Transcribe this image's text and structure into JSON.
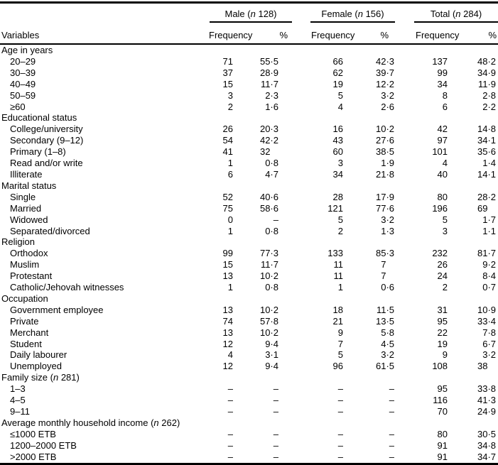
{
  "colors": {
    "text": "#000000",
    "background": "#ffffff",
    "rule": "#000000"
  },
  "table": {
    "variables_header": "Variables",
    "sub_headers": {
      "frequency": "Frequency",
      "percent": "%"
    },
    "col_groups": [
      {
        "name": "Male",
        "n_open": "(",
        "n_var": "n",
        "n_tail": " 128)"
      },
      {
        "name": "Female",
        "n_open": "(",
        "n_var": "n",
        "n_tail": " 156)"
      },
      {
        "name": "Total",
        "n_open": "(",
        "n_var": "n",
        "n_tail": " 284)"
      }
    ],
    "sections": [
      {
        "label": "Age in years",
        "rows": [
          {
            "label": "20–29",
            "cells": [
              "71",
              "55·5",
              "66",
              "42·3",
              "137",
              "48·2"
            ]
          },
          {
            "label": "30–39",
            "cells": [
              "37",
              "28·9",
              "62",
              "39·7",
              "99",
              "34·9"
            ]
          },
          {
            "label": "40–49",
            "cells": [
              "15",
              "11·7",
              "19",
              "12·2",
              "34",
              "11·9"
            ]
          },
          {
            "label": "50–59",
            "cells": [
              "3",
              "2·3",
              "5",
              "3·2",
              "8",
              "2·8"
            ]
          },
          {
            "label": "≥60",
            "cells": [
              "2",
              "1·6",
              "4",
              "2·6",
              "6",
              "2·2"
            ]
          }
        ]
      },
      {
        "label": "Educational status",
        "rows": [
          {
            "label": "College/university",
            "cells": [
              "26",
              "20·3",
              "16",
              "10·2",
              "42",
              "14·8"
            ]
          },
          {
            "label": "Secondary (9–12)",
            "cells": [
              "54",
              "42·2",
              "43",
              "27·6",
              "97",
              "34·1"
            ]
          },
          {
            "label": "Primary (1–8)",
            "cells": [
              "41",
              "32",
              "60",
              "38·5",
              "101",
              "35·6"
            ]
          },
          {
            "label": "Read and/or write",
            "cells": [
              "1",
              "0·8",
              "3",
              "1·9",
              "4",
              "1·4"
            ]
          },
          {
            "label": "Illiterate",
            "cells": [
              "6",
              "4·7",
              "34",
              "21·8",
              "40",
              "14·1"
            ]
          }
        ]
      },
      {
        "label": "Marital status",
        "rows": [
          {
            "label": "Single",
            "cells": [
              "52",
              "40·6",
              "28",
              "17·9",
              "80",
              "28·2"
            ]
          },
          {
            "label": "Married",
            "cells": [
              "75",
              "58·6",
              "121",
              "77·6",
              "196",
              "69"
            ]
          },
          {
            "label": "Widowed",
            "cells": [
              "0",
              "–",
              "5",
              "3·2",
              "5",
              "1·7"
            ]
          },
          {
            "label": "Separated/divorced",
            "cells": [
              "1",
              "0·8",
              "2",
              "1·3",
              "3",
              "1·1"
            ]
          }
        ]
      },
      {
        "label": "Religion",
        "rows": [
          {
            "label": "Orthodox",
            "cells": [
              "99",
              "77·3",
              "133",
              "85·3",
              "232",
              "81·7"
            ]
          },
          {
            "label": "Muslim",
            "cells": [
              "15",
              "11·7",
              "11",
              "7",
              "26",
              "9·2"
            ]
          },
          {
            "label": "Protestant",
            "cells": [
              "13",
              "10·2",
              "11",
              "7",
              "24",
              "8·4"
            ]
          },
          {
            "label": "Catholic/Jehovah witnesses",
            "cells": [
              "1",
              "0·8",
              "1",
              "0·6",
              "2",
              "0·7"
            ]
          }
        ]
      },
      {
        "label": "Occupation",
        "rows": [
          {
            "label": "Government employee",
            "cells": [
              "13",
              "10·2",
              "18",
              "11·5",
              "31",
              "10·9"
            ]
          },
          {
            "label": "Private",
            "cells": [
              "74",
              "57·8",
              "21",
              "13·5",
              "95",
              "33·4"
            ]
          },
          {
            "label": "Merchant",
            "cells": [
              "13",
              "10·2",
              "9",
              "5·8",
              "22",
              "7·8"
            ]
          },
          {
            "label": "Student",
            "cells": [
              "12",
              "9·4",
              "7",
              "4·5",
              "19",
              "6·7"
            ]
          },
          {
            "label": "Daily labourer",
            "cells": [
              "4",
              "3·1",
              "5",
              "3·2",
              "9",
              "3·2"
            ]
          },
          {
            "label": "Unemployed",
            "cells": [
              "12",
              "9·4",
              "96",
              "61·5",
              "108",
              "38"
            ]
          }
        ]
      },
      {
        "label": "Family size",
        "n_open": "(",
        "n_var": "n",
        "n_tail": " 281)",
        "rows": [
          {
            "label": "1–3",
            "cells": [
              "–",
              "–",
              "–",
              "–",
              "95",
              "33·8"
            ]
          },
          {
            "label": "4–5",
            "cells": [
              "–",
              "–",
              "–",
              "–",
              "116",
              "41·3"
            ]
          },
          {
            "label": "9–11",
            "cells": [
              "–",
              "–",
              "–",
              "–",
              "70",
              "24·9"
            ]
          }
        ]
      },
      {
        "label": "Average monthly household income",
        "n_open": "(",
        "n_var": "n",
        "n_tail": " 262)",
        "rows": [
          {
            "label": "≤1000 ETB",
            "cells": [
              "–",
              "–",
              "–",
              "–",
              "80",
              "30·5"
            ]
          },
          {
            "label": "1200–2000 ETB",
            "cells": [
              "–",
              "–",
              "–",
              "–",
              "91",
              "34·8"
            ]
          },
          {
            "label": ">2000 ETB",
            "cells": [
              "–",
              "–",
              "–",
              "–",
              "91",
              "34·7"
            ]
          }
        ]
      }
    ]
  }
}
